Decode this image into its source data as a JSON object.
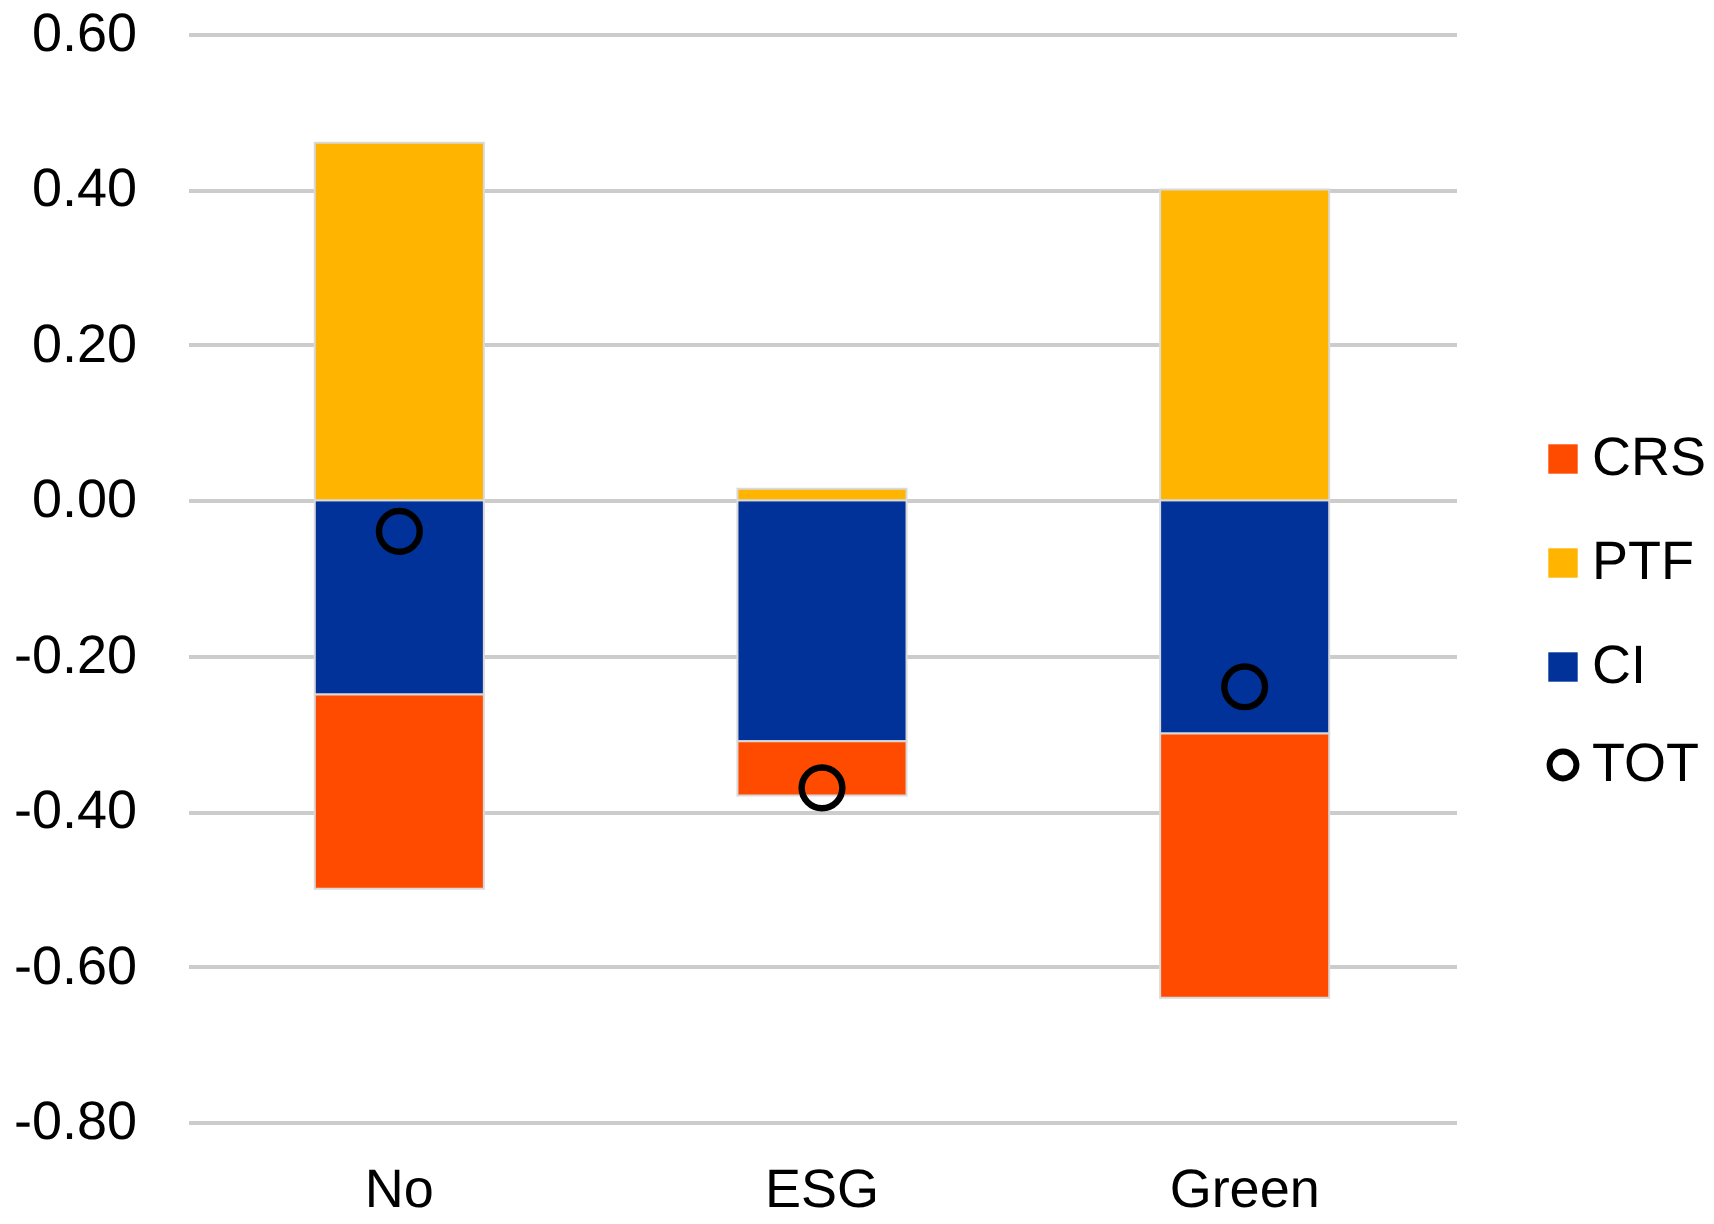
{
  "chart_data": {
    "type": "bar",
    "stacked": true,
    "categories": [
      "No",
      "ESG",
      "Green"
    ],
    "series": [
      {
        "name": "CI",
        "color": "#003299",
        "values": [
          -0.25,
          -0.31,
          -0.3
        ]
      },
      {
        "name": "PTF",
        "color": "#ffb400",
        "values": [
          0.46,
          0.015,
          0.4
        ]
      },
      {
        "name": "CRS",
        "color": "#ff4b00",
        "values": [
          -0.25,
          -0.07,
          -0.34
        ]
      },
      {
        "name": "TOT",
        "type": "scatter",
        "color": "#000000",
        "marker": "circle",
        "x": [
          "No",
          "ESG",
          "Green"
        ],
        "values": [
          -0.04,
          -0.37,
          -0.24
        ]
      }
    ],
    "ylim": [
      -0.8,
      0.6
    ],
    "yticks": [
      {
        "value": -0.8,
        "label": "-0.80"
      },
      {
        "value": -0.6,
        "label": "-0.60"
      },
      {
        "value": -0.4,
        "label": "-0.40"
      },
      {
        "value": -0.2,
        "label": "-0.20"
      },
      {
        "value": 0,
        "label": "0.00"
      },
      {
        "value": 0.2,
        "label": "0.20"
      },
      {
        "value": 0.4,
        "label": "0.40"
      },
      {
        "value": 0.6,
        "label": "0.60"
      }
    ],
    "grid": "y",
    "legend": "right"
  }
}
